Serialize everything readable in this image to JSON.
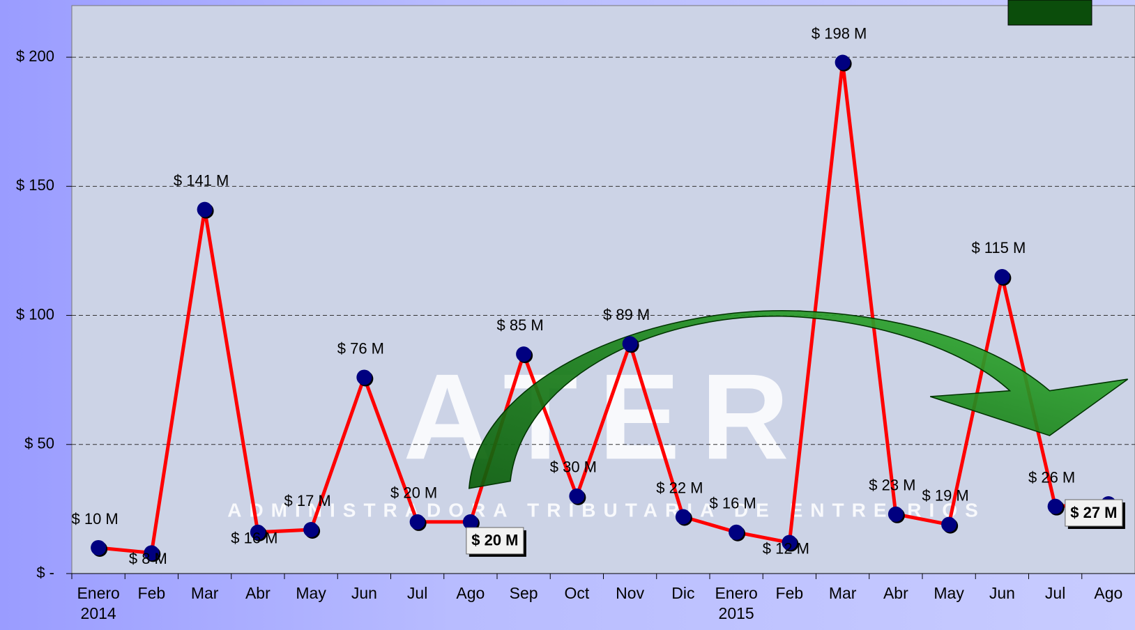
{
  "chart_data": {
    "type": "line",
    "categories": [
      "Enero 2014",
      "Feb",
      "Mar",
      "Abr",
      "May",
      "Jun",
      "Jul",
      "Ago",
      "Sep",
      "Oct",
      "Nov",
      "Dic",
      "Enero 2015",
      "Feb",
      "Mar",
      "Abr",
      "May",
      "Jun",
      "Jul",
      "Ago"
    ],
    "series": [
      {
        "color": "#ff0000",
        "values": [
          10,
          8,
          141,
          16,
          17,
          76,
          20,
          20,
          85,
          30,
          89,
          22,
          16,
          12,
          198,
          23,
          19,
          115,
          26,
          27
        ],
        "value_labels": [
          "$ 10 M",
          "$ 8 M",
          "$ 141 M",
          "$ 16 M",
          "$ 17 M",
          "$ 76 M",
          "$ 20 M",
          "$ 20 M",
          "$ 85 M",
          "$ 30 M",
          "$ 89 M",
          "$ 22 M",
          "$ 16 M",
          "$ 12 M",
          "$ 198 M",
          "$ 23 M",
          "$ 19 M",
          "$ 115 M",
          "$ 26 M",
          "$ 27 M"
        ]
      }
    ],
    "highlighted_points": [
      7,
      19
    ],
    "marker_color": "#000080",
    "ylim": [
      0,
      220
    ],
    "yticks": [
      {
        "value": 0,
        "label": "$ -"
      },
      {
        "value": 50,
        "label": "$ 50"
      },
      {
        "value": 100,
        "label": "$ 100"
      },
      {
        "value": 150,
        "label": "$ 150"
      },
      {
        "value": 200,
        "label": "$ 200"
      }
    ],
    "grid": true,
    "watermark": {
      "logo": "ATER",
      "subtitle": "ADMINISTRADORA TRIBUTARIA DE ENTRE RIOS"
    }
  }
}
